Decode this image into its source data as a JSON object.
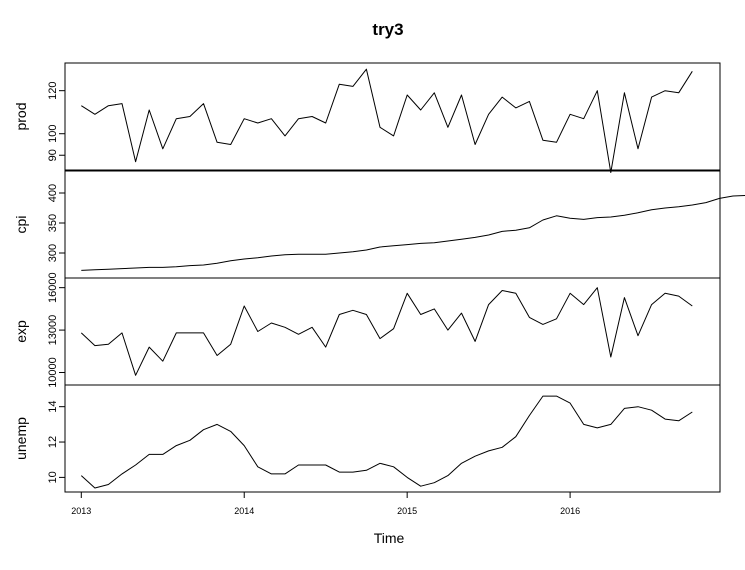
{
  "chart_data": {
    "type": "line",
    "title": "try3",
    "xlabel": "Time",
    "x": {
      "start": 2013.0,
      "frequency": 12,
      "ticks": [
        2013,
        2014,
        2015,
        2016
      ],
      "tick_labels": [
        "2013",
        "2014",
        "2015",
        "2016"
      ],
      "xlim": [
        2012.9,
        2016.92
      ]
    },
    "series": [
      {
        "name": "prod",
        "ylim": [
          85,
          131
        ],
        "yticks": [
          90,
          100,
          120
        ],
        "ytick_labels": [
          "90",
          "100",
          "120"
        ],
        "values": [
          113,
          109,
          113,
          114,
          87,
          111,
          93,
          107,
          108,
          114,
          96,
          95,
          107,
          105,
          107,
          99,
          107,
          108,
          105,
          123,
          122,
          130,
          103,
          99,
          118,
          111,
          119,
          103,
          118,
          95,
          109,
          117,
          112,
          115,
          97,
          96,
          109,
          107,
          120,
          82,
          119,
          93,
          117,
          120,
          119,
          129
        ]
      },
      {
        "name": "cpi",
        "ylim": [
          265,
          430
        ],
        "yticks": [
          300,
          350,
          400
        ],
        "ytick_labels": [
          "300",
          "350",
          "400"
        ],
        "values": [
          271,
          272,
          273,
          274,
          275,
          276,
          276,
          277,
          279,
          280,
          283,
          287,
          290,
          292,
          295,
          297,
          298,
          298,
          298,
          300,
          302,
          305,
          310,
          312,
          314,
          316,
          317,
          320,
          323,
          326,
          330,
          336,
          338,
          342,
          355,
          362,
          358,
          356,
          359,
          360,
          363,
          367,
          372,
          375,
          377,
          380,
          384,
          391,
          395,
          396
        ]
      },
      {
        "name": "exp",
        "ylim": [
          9400,
          16400
        ],
        "yticks": [
          10000,
          13000,
          16000
        ],
        "ytick_labels": [
          "10000",
          "13000",
          "16000"
        ],
        "values": [
          12800,
          11900,
          12000,
          12800,
          9800,
          11800,
          10800,
          12800,
          12800,
          12800,
          11200,
          12000,
          14700,
          12900,
          13500,
          13200,
          12700,
          13200,
          11800,
          14100,
          14400,
          14100,
          12400,
          13100,
          15600,
          14100,
          14500,
          13000,
          14200,
          12200,
          14800,
          15800,
          15600,
          13900,
          13400,
          13800,
          15600,
          14800,
          16000,
          11100,
          15300,
          12600,
          14800,
          15600,
          15400,
          14700
        ]
      },
      {
        "name": "unemp",
        "ylim": [
          9.4,
          15.0
        ],
        "yticks": [
          10,
          12,
          14
        ],
        "ytick_labels": [
          "10",
          "12",
          "14"
        ],
        "values": [
          10.1,
          9.4,
          9.6,
          10.2,
          10.7,
          11.3,
          11.3,
          11.8,
          12.1,
          12.7,
          13.0,
          12.6,
          11.8,
          10.6,
          10.2,
          10.2,
          10.7,
          10.7,
          10.7,
          10.3,
          10.3,
          10.4,
          10.8,
          10.6,
          10.0,
          9.5,
          9.7,
          10.1,
          10.8,
          11.2,
          11.5,
          11.7,
          12.3,
          13.5,
          14.6,
          14.6,
          14.2,
          13.0,
          12.8,
          13.0,
          13.9,
          14.0,
          13.8,
          13.3,
          13.2,
          13.7
        ]
      }
    ]
  }
}
